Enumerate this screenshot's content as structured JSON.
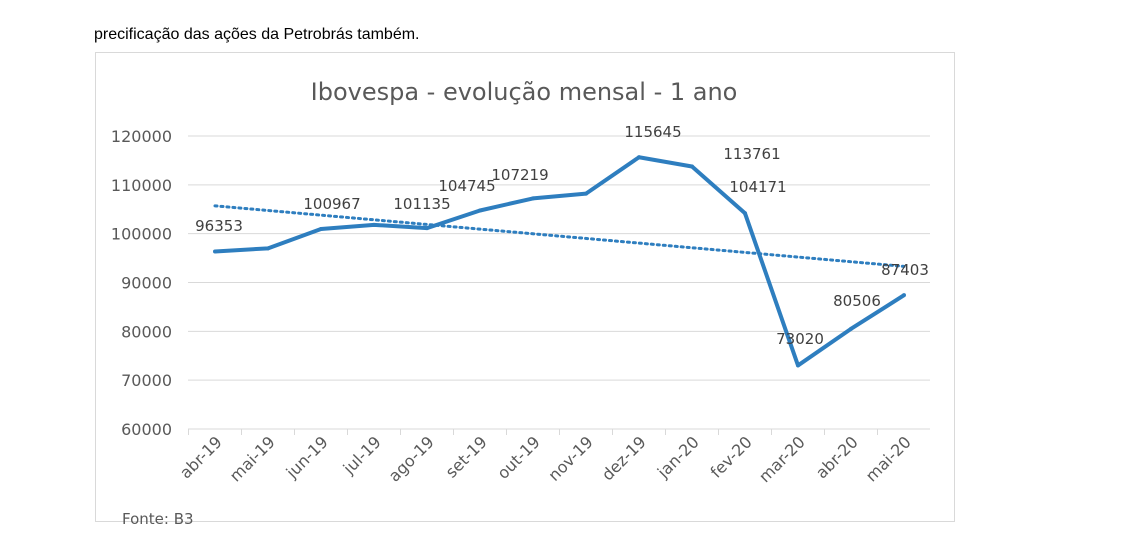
{
  "intro_text": "precificação das ações da Petrobrás também.",
  "source": "Fonte: B3",
  "chart_data": {
    "type": "line",
    "title": "Ibovespa - evolução mensal - 1 ano",
    "categories": [
      "abr-19",
      "mai-19",
      "jun-19",
      "jul-19",
      "ago-19",
      "set-19",
      "out-19",
      "nov-19",
      "dez-19",
      "jan-20",
      "fev-20",
      "mar-20",
      "abr-20",
      "mai-20"
    ],
    "series": [
      {
        "name": "Ibovespa",
        "values": [
          96353,
          97000,
          100967,
          101800,
          101135,
          104745,
          107219,
          108200,
          115645,
          113761,
          104171,
          73020,
          80506,
          87403
        ],
        "color": "#2e7ebf"
      }
    ],
    "data_labels": [
      "96353",
      null,
      "100967",
      null,
      "101135",
      "104745",
      "107219",
      null,
      "115645",
      "113761",
      "104171",
      "73020",
      "80506",
      "87403"
    ],
    "trendline": {
      "type": "linear",
      "style": "dotted",
      "start": 105700,
      "end": 93300
    },
    "ylim": [
      60000,
      120000
    ],
    "yticks": [
      "60000",
      "70000",
      "80000",
      "90000",
      "100000",
      "110000",
      "120000"
    ],
    "grid": true,
    "xlabel": "",
    "ylabel": ""
  }
}
